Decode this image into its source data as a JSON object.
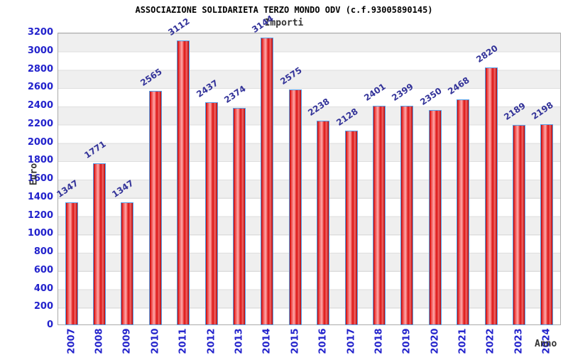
{
  "header": {
    "title": "ASSOCIAZIONE SOLIDARIETA TERZO MONDO ODV (c.f.93005890145)",
    "subtitle": "Importi"
  },
  "chart_data": {
    "type": "bar",
    "title": "ASSOCIAZIONE SOLIDARIETA TERZO MONDO ODV (c.f.93005890145)",
    "subtitle": "Importi",
    "categories": [
      "2007",
      "2008",
      "2009",
      "2010",
      "2011",
      "2012",
      "2013",
      "2014",
      "2015",
      "2016",
      "2017",
      "2018",
      "2019",
      "2020",
      "2021",
      "2022",
      "2023",
      "2024"
    ],
    "values": [
      1347,
      1771,
      1347,
      2565,
      3112,
      2437,
      2374,
      3144,
      2575,
      2238,
      2128,
      2401,
      2399,
      2350,
      2468,
      2820,
      2189,
      2198
    ],
    "xlabel": "Anno",
    "ylabel": "Euro",
    "ylim": [
      0,
      3200
    ],
    "ytick_step": 200,
    "grid": "horizontal-bands-alternating",
    "legend": null,
    "bar_value_labels": true
  },
  "colors": {
    "bar_fill": "#dd1111",
    "bar_border": "#55a0e8",
    "axis_tick_text": "#2222cc",
    "value_label_text": "#333399",
    "band_gray": "#efefef",
    "axis_title_text": "#333333",
    "plot_border": "#aaaaaa"
  }
}
